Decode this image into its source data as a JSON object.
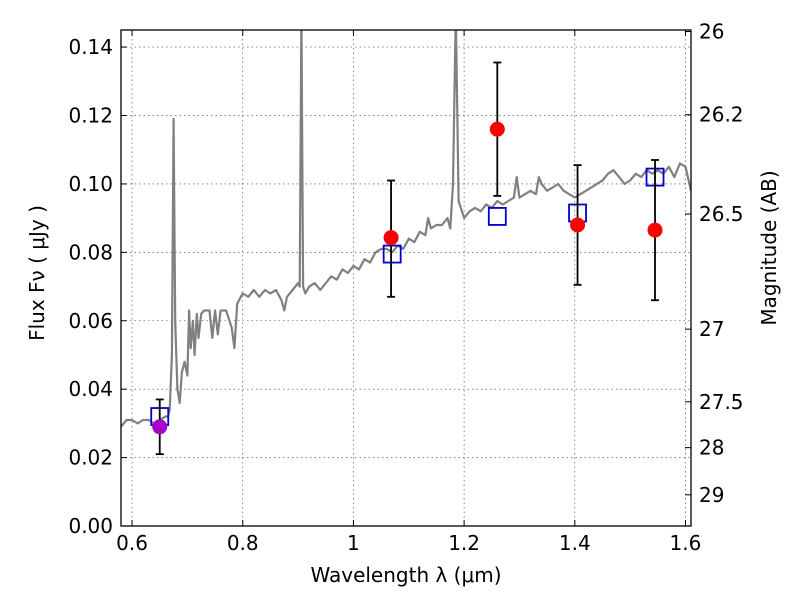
{
  "chart_data": {
    "type": "scatter",
    "xlabel": "Wavelength  λ (μm)",
    "ylabel": "Flux  Fν  ( μJy )",
    "ylabel_right": "Magnitude (AB)",
    "xlim": [
      0.58,
      1.61
    ],
    "ylim": [
      0.0,
      0.145
    ],
    "grid": true,
    "x_ticks": [
      0.6,
      0.8,
      1.0,
      1.2,
      1.4,
      1.6
    ],
    "x_tick_labels": [
      "0.6",
      "0.8",
      "1",
      "1.2",
      "1.4",
      "1.6"
    ],
    "y_ticks": [
      0.0,
      0.02,
      0.04,
      0.06,
      0.08,
      0.1,
      0.12,
      0.14
    ],
    "y_tick_labels": [
      "0.00",
      "0.02",
      "0.04",
      "0.06",
      "0.08",
      "0.10",
      "0.12",
      "0.14"
    ],
    "right_ticks": [
      {
        "mag": 26,
        "label": "26"
      },
      {
        "mag": 26.2,
        "label": "26.2"
      },
      {
        "mag": 26.5,
        "label": "26.5"
      },
      {
        "mag": 27,
        "label": "27"
      },
      {
        "mag": 27.5,
        "label": "27.5"
      },
      {
        "mag": 28,
        "label": "28"
      },
      {
        "mag": 29,
        "label": "29"
      }
    ],
    "model_spectrum": {
      "color": "#808080",
      "points": [
        [
          0.58,
          0.029
        ],
        [
          0.59,
          0.031
        ],
        [
          0.6,
          0.031
        ],
        [
          0.61,
          0.03
        ],
        [
          0.62,
          0.031
        ],
        [
          0.63,
          0.031
        ],
        [
          0.64,
          0.03
        ],
        [
          0.65,
          0.031
        ],
        [
          0.66,
          0.032
        ],
        [
          0.665,
          0.032
        ],
        [
          0.668,
          0.034
        ],
        [
          0.672,
          0.05
        ],
        [
          0.675,
          0.119
        ],
        [
          0.678,
          0.06
        ],
        [
          0.682,
          0.04
        ],
        [
          0.686,
          0.036
        ],
        [
          0.69,
          0.045
        ],
        [
          0.695,
          0.048
        ],
        [
          0.7,
          0.044
        ],
        [
          0.703,
          0.063
        ],
        [
          0.706,
          0.052
        ],
        [
          0.71,
          0.06
        ],
        [
          0.713,
          0.05
        ],
        [
          0.717,
          0.062
        ],
        [
          0.72,
          0.055
        ],
        [
          0.725,
          0.062
        ],
        [
          0.73,
          0.063
        ],
        [
          0.74,
          0.063
        ],
        [
          0.745,
          0.055
        ],
        [
          0.75,
          0.063
        ],
        [
          0.755,
          0.056
        ],
        [
          0.76,
          0.063
        ],
        [
          0.77,
          0.063
        ],
        [
          0.78,
          0.058
        ],
        [
          0.785,
          0.052
        ],
        [
          0.79,
          0.065
        ],
        [
          0.8,
          0.068
        ],
        [
          0.81,
          0.067
        ],
        [
          0.82,
          0.069
        ],
        [
          0.83,
          0.067
        ],
        [
          0.84,
          0.069
        ],
        [
          0.85,
          0.068
        ],
        [
          0.86,
          0.069
        ],
        [
          0.87,
          0.066
        ],
        [
          0.875,
          0.063
        ],
        [
          0.88,
          0.067
        ],
        [
          0.89,
          0.069
        ],
        [
          0.9,
          0.071
        ],
        [
          0.903,
          0.07
        ],
        [
          0.906,
          0.15
        ],
        [
          0.909,
          0.07
        ],
        [
          0.913,
          0.068
        ],
        [
          0.92,
          0.07
        ],
        [
          0.93,
          0.071
        ],
        [
          0.94,
          0.069
        ],
        [
          0.95,
          0.071
        ],
        [
          0.96,
          0.073
        ],
        [
          0.97,
          0.072
        ],
        [
          0.98,
          0.075
        ],
        [
          0.99,
          0.074
        ],
        [
          1.0,
          0.076
        ],
        [
          1.01,
          0.075
        ],
        [
          1.02,
          0.078
        ],
        [
          1.03,
          0.077
        ],
        [
          1.04,
          0.08
        ],
        [
          1.05,
          0.081
        ],
        [
          1.06,
          0.081
        ],
        [
          1.07,
          0.08
        ],
        [
          1.08,
          0.082
        ],
        [
          1.09,
          0.081
        ],
        [
          1.1,
          0.084
        ],
        [
          1.11,
          0.083
        ],
        [
          1.12,
          0.086
        ],
        [
          1.13,
          0.085
        ],
        [
          1.135,
          0.09
        ],
        [
          1.14,
          0.087
        ],
        [
          1.15,
          0.088
        ],
        [
          1.16,
          0.088
        ],
        [
          1.17,
          0.09
        ],
        [
          1.175,
          0.087
        ],
        [
          1.18,
          0.1
        ],
        [
          1.185,
          0.15
        ],
        [
          1.19,
          0.095
        ],
        [
          1.2,
          0.09
        ],
        [
          1.21,
          0.092
        ],
        [
          1.22,
          0.093
        ],
        [
          1.23,
          0.092
        ],
        [
          1.24,
          0.094
        ],
        [
          1.25,
          0.093
        ],
        [
          1.26,
          0.095
        ],
        [
          1.27,
          0.094
        ],
        [
          1.28,
          0.095
        ],
        [
          1.29,
          0.096
        ],
        [
          1.295,
          0.102
        ],
        [
          1.3,
          0.096
        ],
        [
          1.31,
          0.097
        ],
        [
          1.32,
          0.098
        ],
        [
          1.33,
          0.097
        ],
        [
          1.335,
          0.102
        ],
        [
          1.34,
          0.1
        ],
        [
          1.35,
          0.098
        ],
        [
          1.36,
          0.099
        ],
        [
          1.37,
          0.1
        ],
        [
          1.38,
          0.098
        ],
        [
          1.39,
          0.097
        ],
        [
          1.4,
          0.096
        ],
        [
          1.41,
          0.097
        ],
        [
          1.42,
          0.098
        ],
        [
          1.43,
          0.099
        ],
        [
          1.44,
          0.1
        ],
        [
          1.45,
          0.101
        ],
        [
          1.46,
          0.103
        ],
        [
          1.47,
          0.104
        ],
        [
          1.48,
          0.102
        ],
        [
          1.49,
          0.1
        ],
        [
          1.5,
          0.101
        ],
        [
          1.51,
          0.103
        ],
        [
          1.52,
          0.102
        ],
        [
          1.53,
          0.104
        ],
        [
          1.54,
          0.103
        ],
        [
          1.55,
          0.104
        ],
        [
          1.56,
          0.103
        ],
        [
          1.57,
          0.105
        ],
        [
          1.58,
          0.102
        ],
        [
          1.59,
          0.106
        ],
        [
          1.6,
          0.105
        ],
        [
          1.61,
          0.098
        ]
      ]
    },
    "model_boxes": {
      "color": "#0000cc",
      "points": [
        {
          "x": 0.65,
          "y": 0.032
        },
        {
          "x": 1.07,
          "y": 0.0795
        },
        {
          "x": 1.26,
          "y": 0.0905
        },
        {
          "x": 1.405,
          "y": 0.0915
        },
        {
          "x": 1.545,
          "y": 0.102
        }
      ]
    },
    "observations": [
      {
        "x": 0.65,
        "y": 0.029,
        "yerr_low": 0.021,
        "yerr_high": 0.037,
        "color": "#aa00cc"
      },
      {
        "x": 1.068,
        "y": 0.0843,
        "yerr_low": 0.067,
        "yerr_high": 0.101,
        "color": "#ff0000"
      },
      {
        "x": 1.26,
        "y": 0.116,
        "yerr_low": 0.0965,
        "yerr_high": 0.1355,
        "color": "#ff0000"
      },
      {
        "x": 1.405,
        "y": 0.088,
        "yerr_low": 0.0705,
        "yerr_high": 0.1055,
        "color": "#ff0000"
      },
      {
        "x": 1.545,
        "y": 0.0865,
        "yerr_low": 0.066,
        "yerr_high": 0.107,
        "color": "#ff0000"
      }
    ]
  }
}
